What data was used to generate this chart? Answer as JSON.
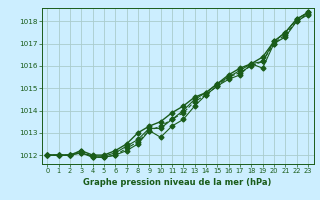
{
  "title": "Graphe pression niveau de la mer (hPa)",
  "bg_color": "#cceeff",
  "grid_color": "#aacccc",
  "line_color": "#1a5c1a",
  "xlim": [
    -0.5,
    23.5
  ],
  "ylim": [
    1011.6,
    1018.6
  ],
  "xticks": [
    0,
    1,
    2,
    3,
    4,
    5,
    6,
    7,
    8,
    9,
    10,
    11,
    12,
    13,
    14,
    15,
    16,
    17,
    18,
    19,
    20,
    21,
    22,
    23
  ],
  "yticks": [
    1012,
    1013,
    1014,
    1015,
    1016,
    1017,
    1018
  ],
  "series": [
    {
      "x": [
        0,
        1,
        2,
        3,
        4,
        5,
        6,
        7,
        8,
        9,
        10,
        11,
        12,
        13,
        14,
        15,
        16,
        17,
        18,
        19,
        20,
        21,
        22,
        23
      ],
      "y": [
        1012.0,
        1012.0,
        1012.0,
        1012.1,
        1011.9,
        1011.9,
        1012.0,
        1012.2,
        1012.5,
        1013.1,
        1012.8,
        1013.3,
        1013.6,
        1014.2,
        1014.7,
        1015.1,
        1015.4,
        1015.6,
        1016.1,
        1015.9,
        1017.0,
        1017.3,
        1018.0,
        1018.3
      ],
      "marker": "D",
      "markersize": 2.5,
      "linewidth": 0.8,
      "linestyle": "-"
    },
    {
      "x": [
        0,
        1,
        2,
        3,
        4,
        5,
        6,
        7,
        8,
        9,
        10,
        11,
        12,
        13,
        14,
        15,
        16,
        17,
        18,
        19,
        20,
        21,
        22,
        23
      ],
      "y": [
        1012.0,
        1012.0,
        1012.0,
        1012.1,
        1011.95,
        1011.95,
        1012.1,
        1012.4,
        1012.7,
        1013.2,
        1013.2,
        1013.6,
        1014.0,
        1014.5,
        1014.8,
        1015.2,
        1015.5,
        1015.8,
        1016.1,
        1016.2,
        1017.1,
        1017.5,
        1018.1,
        1018.4
      ],
      "marker": "D",
      "markersize": 2.5,
      "linewidth": 0.8,
      "linestyle": "-"
    },
    {
      "x": [
        0,
        1,
        2,
        3,
        4,
        5,
        6,
        7,
        8,
        9,
        10,
        11,
        12,
        13,
        14,
        15,
        16,
        17,
        18,
        19,
        20,
        21,
        22,
        23
      ],
      "y": [
        1012.0,
        1012.0,
        1012.0,
        1012.2,
        1012.0,
        1012.0,
        1012.2,
        1012.5,
        1013.0,
        1013.3,
        1013.5,
        1013.9,
        1014.2,
        1014.6,
        1014.8,
        1015.2,
        1015.6,
        1015.9,
        1016.1,
        1016.4,
        1017.1,
        1017.5,
        1018.1,
        1018.4
      ],
      "marker": "D",
      "markersize": 2.5,
      "linewidth": 1.0,
      "linestyle": "-"
    },
    {
      "x": [
        0,
        1,
        2,
        3,
        4,
        5,
        6,
        7,
        8,
        9,
        10,
        11,
        12,
        13,
        14,
        15,
        16,
        17,
        18,
        19,
        20,
        21,
        22,
        23
      ],
      "y": [
        1012.0,
        1012.0,
        1012.0,
        1012.2,
        1011.9,
        1011.9,
        1012.0,
        1012.3,
        1012.6,
        1013.1,
        1013.3,
        1013.6,
        1013.9,
        1014.4,
        1014.7,
        1015.1,
        1015.5,
        1015.7,
        1016.0,
        1016.2,
        1017.0,
        1017.4,
        1018.0,
        1018.35
      ],
      "marker": "D",
      "markersize": 2.5,
      "linewidth": 0.8,
      "linestyle": "--"
    }
  ]
}
